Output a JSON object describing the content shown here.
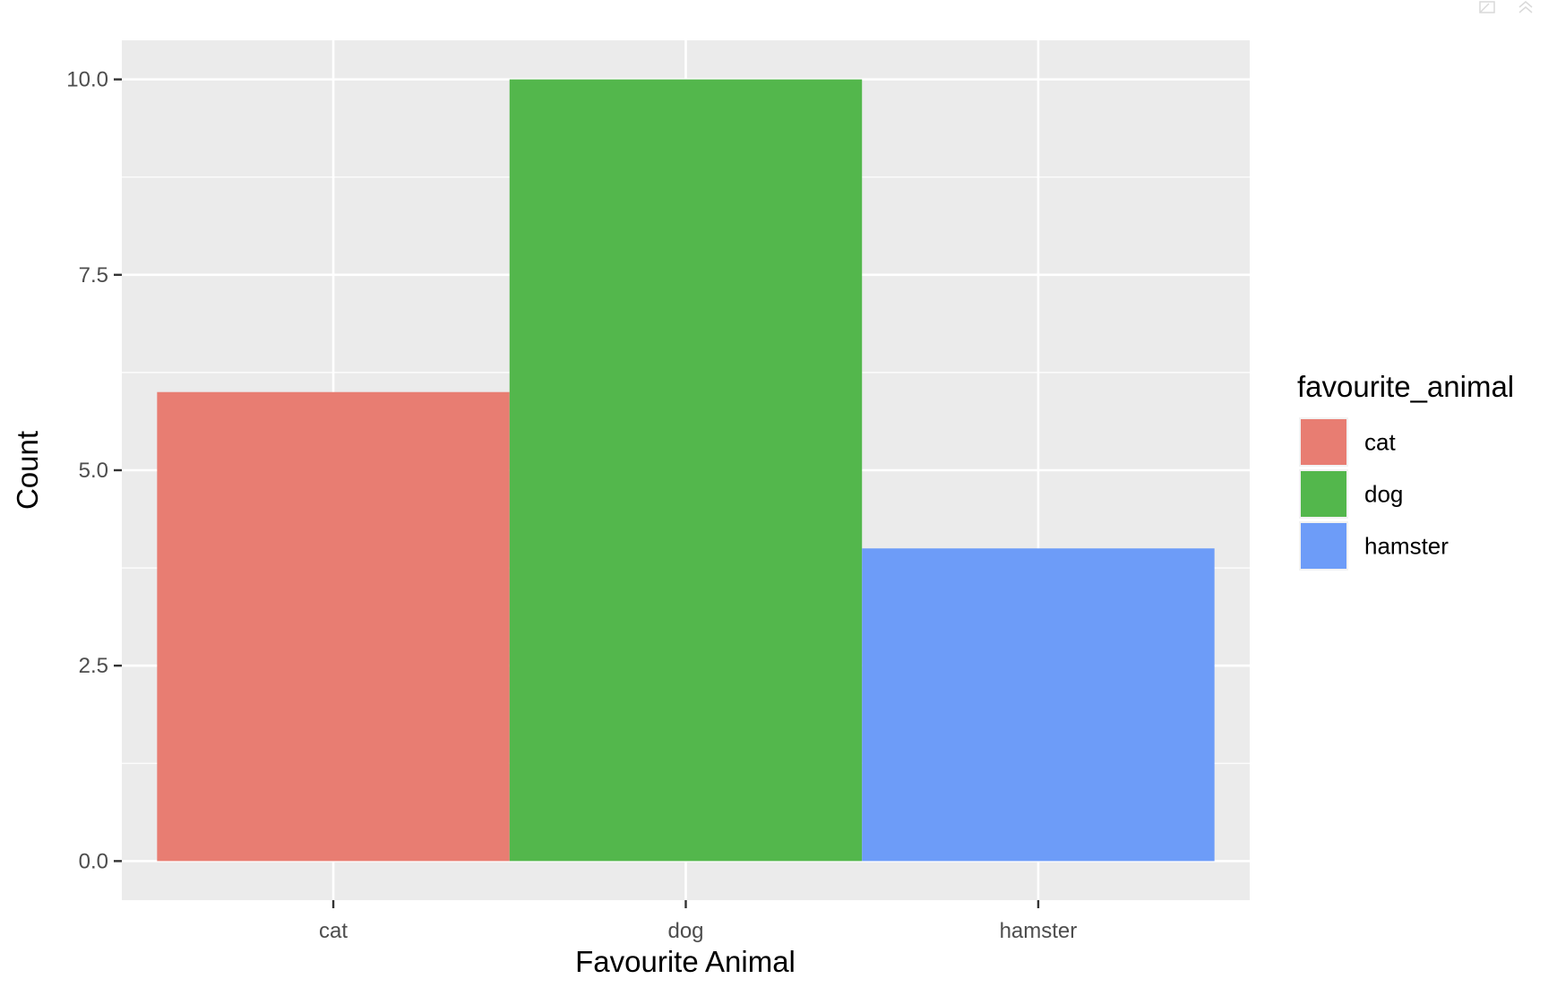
{
  "chart_data": {
    "type": "bar",
    "categories": [
      "cat",
      "dog",
      "hamster"
    ],
    "values": [
      6,
      10,
      4
    ],
    "xlabel": "Favourite Animal",
    "ylabel": "Count",
    "ylim": [
      -0.5,
      10.5
    ],
    "yticks": [
      0,
      2.5,
      5,
      7.5,
      10
    ],
    "ytick_labels": [
      "0.0",
      "2.5",
      "5.0",
      "7.5",
      "10.0"
    ],
    "legend": {
      "title": "favourite_animal",
      "entries": [
        "cat",
        "dog",
        "hamster"
      ],
      "placement": "right"
    },
    "colors": {
      "cat": "#E87D72",
      "dog": "#53B74C",
      "hamster": "#6D9CF8",
      "panel": "#EBEBEB",
      "grid": "#FFFFFF"
    },
    "grid": true
  }
}
